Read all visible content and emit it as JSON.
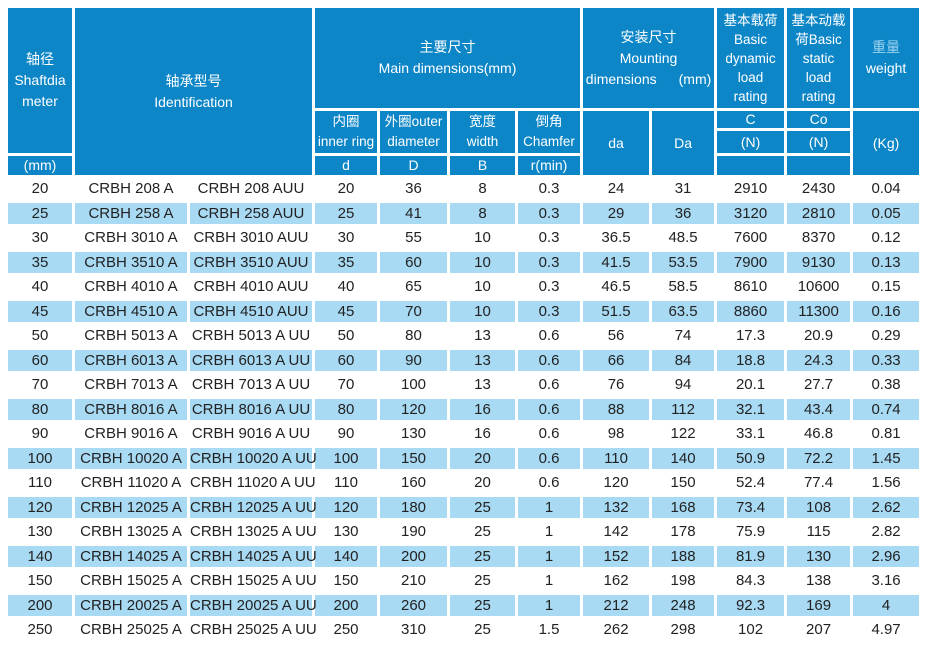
{
  "colors": {
    "header_blue": "#0d86c7",
    "row_alt_blue": "#a8daf4",
    "data_text": "#222222",
    "header_text": "#ffffff",
    "weight_zh_tint": "#9cd3ee"
  },
  "table": {
    "header": {
      "shaft_diameter": {
        "zh": "轴径",
        "en_line1": "Shaftdia",
        "en_line2": "meter",
        "unit": "(mm)"
      },
      "identification": {
        "zh": "轴承型号",
        "en": "Identification"
      },
      "main_dimensions": {
        "zh": "主要尺寸",
        "en": "Main dimensions(mm)"
      },
      "inner_ring": {
        "zh": "内圈",
        "en": "inner ring",
        "symbol": "d"
      },
      "outer_diameter": {
        "line1": "外圈outer",
        "line2": "diameter",
        "symbol": "D"
      },
      "width": {
        "zh": "宽度",
        "en": "width",
        "symbol": "B"
      },
      "chamfer": {
        "zh": "倒角",
        "en": "Chamfer",
        "symbol": "r(min)"
      },
      "mounting": {
        "zh": "安装尺寸",
        "en_line1": "Mounting",
        "en_line2": "dimensions",
        "unit": "(mm)",
        "sub1": "da",
        "sub2": "Da"
      },
      "dynamic_load": {
        "lines": [
          "基本载荷",
          "Basic",
          "dynamic",
          "load",
          "rating"
        ],
        "symbol": "C",
        "unit": "(N)"
      },
      "static_load": {
        "lines": [
          "基本动载",
          "荷Basic",
          "static",
          "load",
          "rating"
        ],
        "symbol": "Co",
        "unit": "(N)"
      },
      "weight": {
        "zh": "重量",
        "en": "weight",
        "unit": "(Kg)"
      }
    },
    "columns": [
      "shaft_mm",
      "identification_a",
      "identification_auu",
      "d",
      "D",
      "B",
      "r_min",
      "da",
      "Da",
      "C_N",
      "Co_N",
      "weight_kg"
    ],
    "rows": [
      [
        "20",
        "CRBH 208 A",
        "CRBH 208 AUU",
        "20",
        "36",
        "8",
        "0.3",
        "24",
        "31",
        "2910",
        "2430",
        "0.04"
      ],
      [
        "25",
        "CRBH 258 A",
        "CRBH 258 AUU",
        "25",
        "41",
        "8",
        "0.3",
        "29",
        "36",
        "3120",
        "2810",
        "0.05"
      ],
      [
        "30",
        "CRBH 3010 A",
        "CRBH 3010 AUU",
        "30",
        "55",
        "10",
        "0.3",
        "36.5",
        "48.5",
        "7600",
        "8370",
        "0.12"
      ],
      [
        "35",
        "CRBH 3510 A",
        "CRBH 3510 AUU",
        "35",
        "60",
        "10",
        "0.3",
        "41.5",
        "53.5",
        "7900",
        "9130",
        "0.13"
      ],
      [
        "40",
        "CRBH 4010 A",
        "CRBH 4010 AUU",
        "40",
        "65",
        "10",
        "0.3",
        "46.5",
        "58.5",
        "8610",
        "10600",
        "0.15"
      ],
      [
        "45",
        "CRBH 4510 A",
        "CRBH 4510 AUU",
        "45",
        "70",
        "10",
        "0.3",
        "51.5",
        "63.5",
        "8860",
        "11300",
        "0.16"
      ],
      [
        "50",
        "CRBH 5013 A",
        "CRBH 5013 A UU",
        "50",
        "80",
        "13",
        "0.6",
        "56",
        "74",
        "17.3",
        "20.9",
        "0.29"
      ],
      [
        "60",
        "CRBH 6013 A",
        "CRBH 6013 A UU",
        "60",
        "90",
        "13",
        "0.6",
        "66",
        "84",
        "18.8",
        "24.3",
        "0.33"
      ],
      [
        "70",
        "CRBH 7013 A",
        "CRBH 7013 A UU",
        "70",
        "100",
        "13",
        "0.6",
        "76",
        "94",
        "20.1",
        "27.7",
        "0.38"
      ],
      [
        "80",
        "CRBH 8016 A",
        "CRBH 8016 A UU",
        "80",
        "120",
        "16",
        "0.6",
        "88",
        "112",
        "32.1",
        "43.4",
        "0.74"
      ],
      [
        "90",
        "CRBH 9016 A",
        "CRBH 9016 A UU",
        "90",
        "130",
        "16",
        "0.6",
        "98",
        "122",
        "33.1",
        "46.8",
        "0.81"
      ],
      [
        "100",
        "CRBH 10020 A",
        "CRBH 10020 A UU",
        "100",
        "150",
        "20",
        "0.6",
        "110",
        "140",
        "50.9",
        "72.2",
        "1.45"
      ],
      [
        "110",
        "CRBH 11020 A",
        "CRBH 11020 A UU",
        "110",
        "160",
        "20",
        "0.6",
        "120",
        "150",
        "52.4",
        "77.4",
        "1.56"
      ],
      [
        "120",
        "CRBH 12025 A",
        "CRBH 12025 A UU",
        "120",
        "180",
        "25",
        "1",
        "132",
        "168",
        "73.4",
        "108",
        "2.62"
      ],
      [
        "130",
        "CRBH 13025 A",
        "CRBH 13025 A UU",
        "130",
        "190",
        "25",
        "1",
        "142",
        "178",
        "75.9",
        "115",
        "2.82"
      ],
      [
        "140",
        "CRBH 14025 A",
        "CRBH 14025 A UU",
        "140",
        "200",
        "25",
        "1",
        "152",
        "188",
        "81.9",
        "130",
        "2.96"
      ],
      [
        "150",
        "CRBH 15025 A",
        "CRBH 15025 A UU",
        "150",
        "210",
        "25",
        "1",
        "162",
        "198",
        "84.3",
        "138",
        "3.16"
      ],
      [
        "200",
        "CRBH 20025 A",
        "CRBH 20025 A UU",
        "200",
        "260",
        "25",
        "1",
        "212",
        "248",
        "92.3",
        "169",
        "4"
      ],
      [
        "250",
        "CRBH 25025 A",
        "CRBH 25025 A UU",
        "250",
        "310",
        "25",
        "1.5",
        "262",
        "298",
        "102",
        "207",
        "4.97"
      ]
    ]
  }
}
